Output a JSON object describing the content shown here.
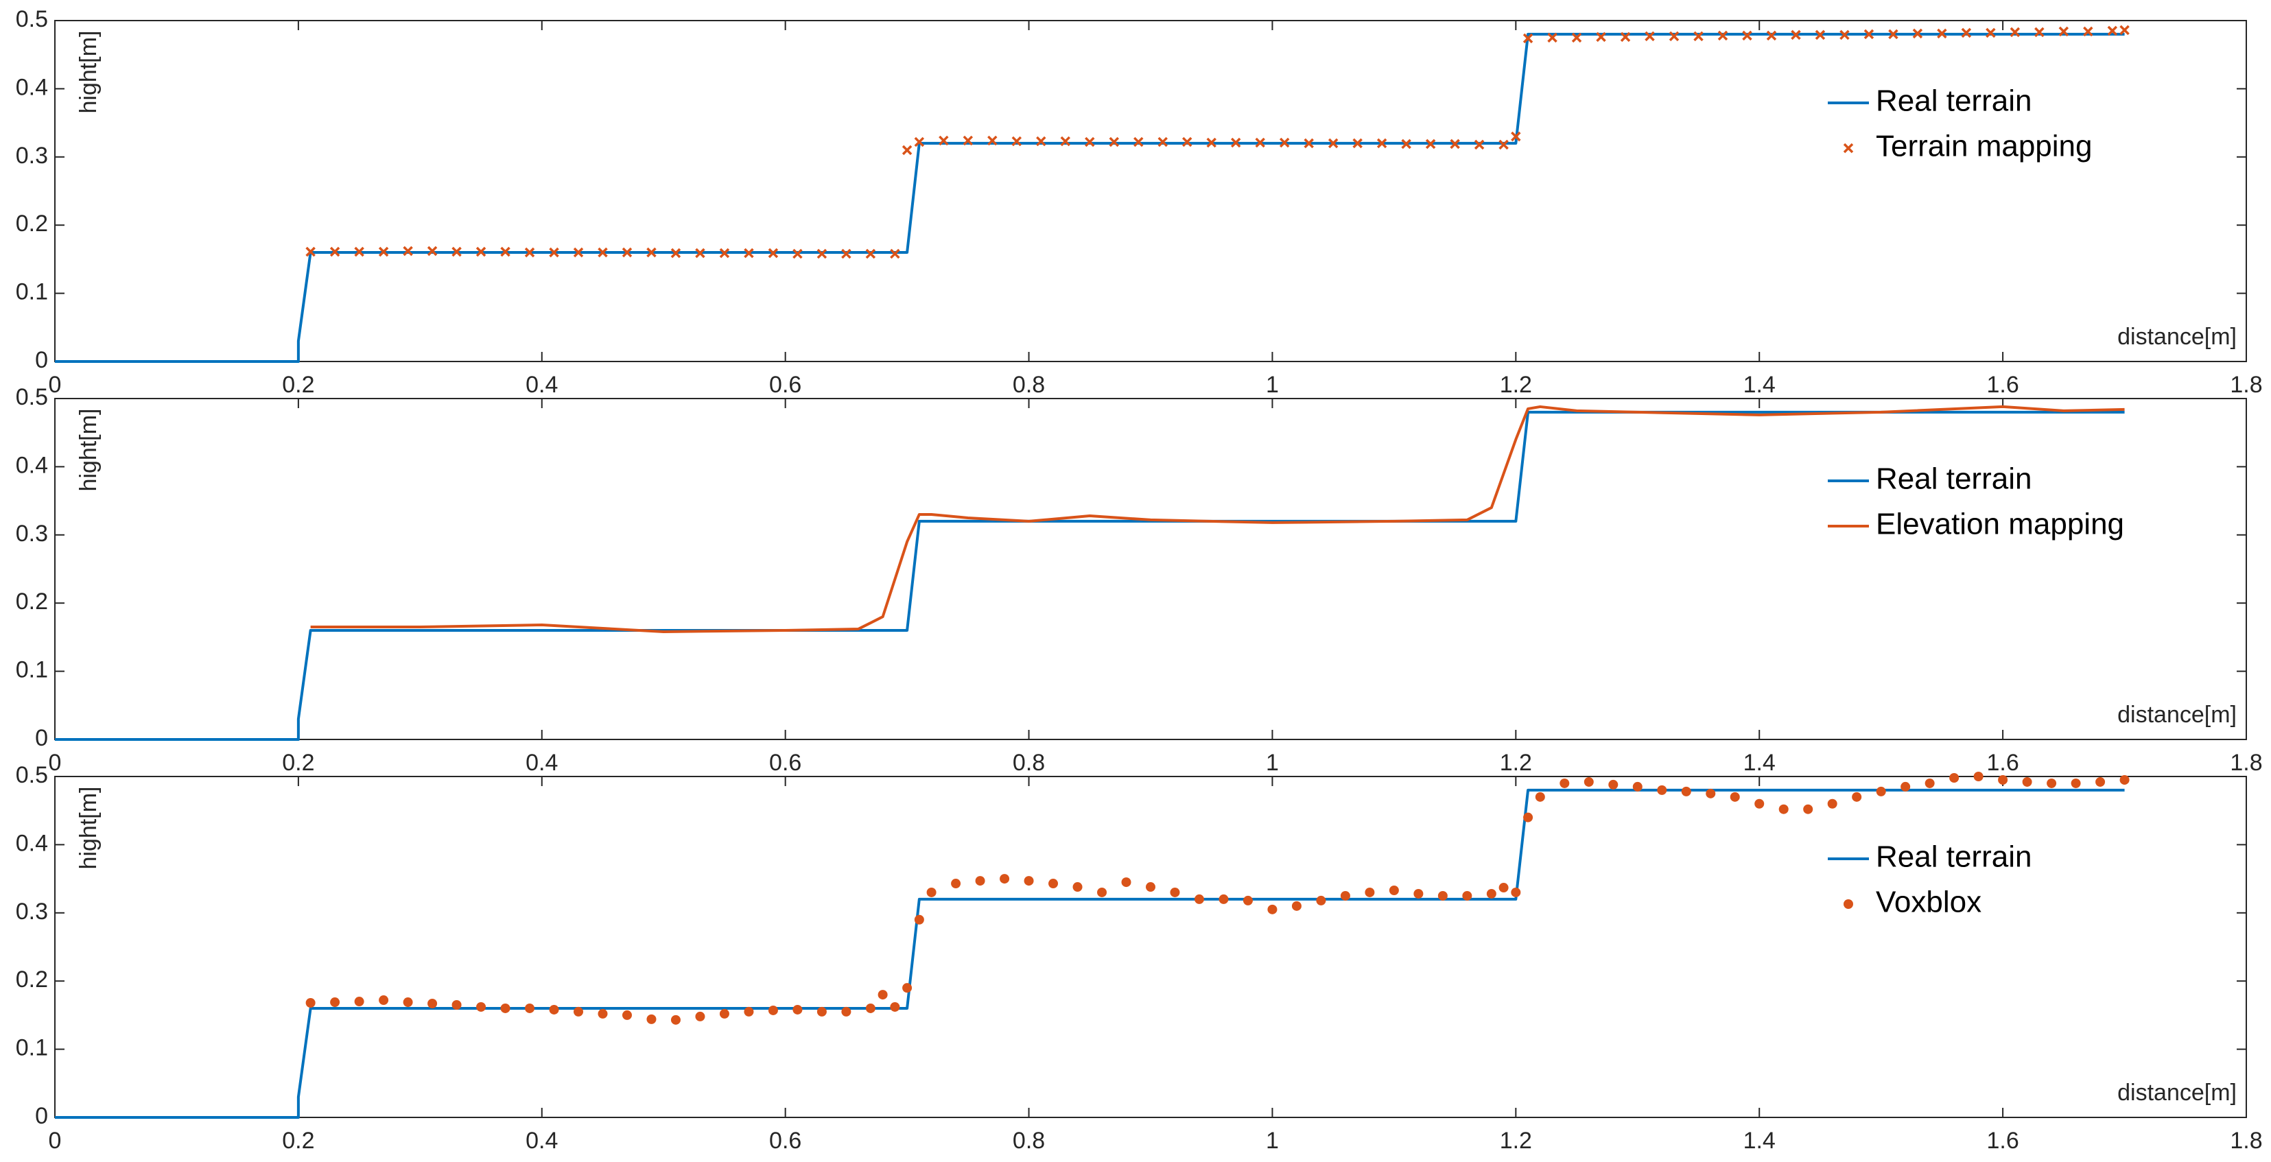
{
  "chart_data": [
    {
      "type": "line",
      "xlabel": "distance[m]",
      "ylabel": "hight[m]",
      "xlim": [
        0,
        1.8
      ],
      "xticks": [
        0,
        0.2,
        0.4,
        0.6,
        0.8,
        1,
        1.2,
        1.4,
        1.6,
        1.8
      ],
      "ylim": [
        0,
        0.5
      ],
      "yticks": [
        0,
        0.1,
        0.2,
        0.3,
        0.4,
        0.5
      ],
      "legend": "right",
      "series": [
        {
          "name": "Real terrain",
          "color": "#0072bd",
          "mode": "line",
          "x": [
            0,
            0.2,
            0.2,
            0.21,
            0.7,
            0.71,
            1.2,
            1.21,
            1.7
          ],
          "values": [
            0,
            0,
            0.03,
            0.16,
            0.16,
            0.32,
            0.32,
            0.48,
            0.48
          ]
        },
        {
          "name": "Terrain mapping",
          "color": "#d95319",
          "mode": "markers",
          "marker": "x",
          "x": [
            0.21,
            0.23,
            0.25,
            0.27,
            0.29,
            0.31,
            0.33,
            0.35,
            0.37,
            0.39,
            0.41,
            0.43,
            0.45,
            0.47,
            0.49,
            0.51,
            0.53,
            0.55,
            0.57,
            0.59,
            0.61,
            0.63,
            0.65,
            0.67,
            0.69,
            0.7,
            0.71,
            0.73,
            0.75,
            0.77,
            0.79,
            0.81,
            0.83,
            0.85,
            0.87,
            0.89,
            0.91,
            0.93,
            0.95,
            0.97,
            0.99,
            1.01,
            1.03,
            1.05,
            1.07,
            1.09,
            1.11,
            1.13,
            1.15,
            1.17,
            1.19,
            1.2,
            1.21,
            1.23,
            1.25,
            1.27,
            1.29,
            1.31,
            1.33,
            1.35,
            1.37,
            1.39,
            1.41,
            1.43,
            1.45,
            1.47,
            1.49,
            1.51,
            1.53,
            1.55,
            1.57,
            1.59,
            1.61,
            1.63,
            1.65,
            1.67,
            1.69,
            1.7
          ],
          "values": [
            0.161,
            0.161,
            0.161,
            0.161,
            0.162,
            0.162,
            0.161,
            0.161,
            0.161,
            0.16,
            0.16,
            0.16,
            0.16,
            0.16,
            0.16,
            0.159,
            0.159,
            0.159,
            0.159,
            0.159,
            0.158,
            0.158,
            0.158,
            0.158,
            0.158,
            0.31,
            0.322,
            0.324,
            0.324,
            0.324,
            0.323,
            0.323,
            0.323,
            0.322,
            0.322,
            0.322,
            0.322,
            0.322,
            0.321,
            0.321,
            0.321,
            0.321,
            0.32,
            0.32,
            0.32,
            0.32,
            0.319,
            0.319,
            0.319,
            0.318,
            0.318,
            0.33,
            0.474,
            0.475,
            0.475,
            0.476,
            0.476,
            0.477,
            0.477,
            0.477,
            0.478,
            0.478,
            0.478,
            0.479,
            0.479,
            0.479,
            0.48,
            0.48,
            0.481,
            0.481,
            0.482,
            0.482,
            0.483,
            0.483,
            0.484,
            0.484,
            0.485,
            0.486
          ]
        }
      ]
    },
    {
      "type": "line",
      "xlabel": "distance[m]",
      "ylabel": "hight[m]",
      "xlim": [
        0,
        1.8
      ],
      "xticks": [
        0,
        0.2,
        0.4,
        0.6,
        0.8,
        1,
        1.2,
        1.4,
        1.6,
        1.8
      ],
      "ylim": [
        0,
        0.5
      ],
      "yticks": [
        0,
        0.1,
        0.2,
        0.3,
        0.4,
        0.5
      ],
      "legend": "right",
      "series": [
        {
          "name": "Real terrain",
          "color": "#0072bd",
          "mode": "line",
          "x": [
            0,
            0.2,
            0.2,
            0.21,
            0.7,
            0.71,
            1.2,
            1.21,
            1.7
          ],
          "values": [
            0,
            0,
            0.03,
            0.16,
            0.16,
            0.32,
            0.32,
            0.48,
            0.48
          ]
        },
        {
          "name": "Elevation mapping",
          "color": "#d95319",
          "mode": "line",
          "x": [
            0.21,
            0.3,
            0.4,
            0.5,
            0.6,
            0.66,
            0.68,
            0.7,
            0.71,
            0.72,
            0.75,
            0.8,
            0.85,
            0.9,
            1.0,
            1.1,
            1.16,
            1.18,
            1.2,
            1.21,
            1.22,
            1.25,
            1.3,
            1.4,
            1.5,
            1.6,
            1.65,
            1.7
          ],
          "values": [
            0.165,
            0.165,
            0.168,
            0.158,
            0.16,
            0.162,
            0.18,
            0.29,
            0.33,
            0.33,
            0.325,
            0.32,
            0.328,
            0.322,
            0.318,
            0.32,
            0.322,
            0.34,
            0.44,
            0.485,
            0.488,
            0.482,
            0.48,
            0.476,
            0.48,
            0.488,
            0.482,
            0.484
          ]
        }
      ]
    },
    {
      "type": "line",
      "xlabel": "distance[m]",
      "ylabel": "hight[m]",
      "xlim": [
        0,
        1.8
      ],
      "xticks": [
        0,
        0.2,
        0.4,
        0.6,
        0.8,
        1,
        1.2,
        1.4,
        1.6,
        1.8
      ],
      "ylim": [
        0,
        0.5
      ],
      "yticks": [
        0,
        0.1,
        0.2,
        0.3,
        0.4,
        0.5
      ],
      "legend": "right",
      "series": [
        {
          "name": "Real terrain",
          "color": "#0072bd",
          "mode": "line",
          "x": [
            0,
            0.2,
            0.2,
            0.21,
            0.7,
            0.71,
            1.2,
            1.21,
            1.7
          ],
          "values": [
            0,
            0,
            0.03,
            0.16,
            0.16,
            0.32,
            0.32,
            0.48,
            0.48
          ]
        },
        {
          "name": "Voxblox",
          "color": "#d95319",
          "mode": "markers",
          "marker": "circle",
          "x": [
            0.21,
            0.23,
            0.25,
            0.27,
            0.29,
            0.31,
            0.33,
            0.35,
            0.37,
            0.39,
            0.41,
            0.43,
            0.45,
            0.47,
            0.49,
            0.51,
            0.53,
            0.55,
            0.57,
            0.59,
            0.61,
            0.63,
            0.65,
            0.67,
            0.68,
            0.69,
            0.7,
            0.71,
            0.72,
            0.74,
            0.76,
            0.78,
            0.8,
            0.82,
            0.84,
            0.86,
            0.88,
            0.9,
            0.92,
            0.94,
            0.96,
            0.98,
            1,
            1.02,
            1.04,
            1.06,
            1.08,
            1.1,
            1.12,
            1.14,
            1.16,
            1.18,
            1.19,
            1.2,
            1.21,
            1.22,
            1.24,
            1.26,
            1.28,
            1.3,
            1.32,
            1.34,
            1.36,
            1.38,
            1.4,
            1.42,
            1.44,
            1.46,
            1.48,
            1.5,
            1.52,
            1.54,
            1.56,
            1.58,
            1.6,
            1.62,
            1.64,
            1.66,
            1.68,
            1.7
          ],
          "values": [
            0.168,
            0.169,
            0.17,
            0.172,
            0.169,
            0.167,
            0.165,
            0.162,
            0.16,
            0.16,
            0.158,
            0.155,
            0.152,
            0.15,
            0.144,
            0.143,
            0.148,
            0.152,
            0.155,
            0.157,
            0.158,
            0.155,
            0.155,
            0.16,
            0.18,
            0.162,
            0.19,
            0.29,
            0.33,
            0.343,
            0.347,
            0.35,
            0.347,
            0.343,
            0.338,
            0.33,
            0.345,
            0.338,
            0.33,
            0.32,
            0.32,
            0.318,
            0.305,
            0.31,
            0.318,
            0.325,
            0.33,
            0.333,
            0.328,
            0.325,
            0.325,
            0.328,
            0.337,
            0.33,
            0.44,
            0.47,
            0.49,
            0.492,
            0.488,
            0.485,
            0.48,
            0.478,
            0.475,
            0.47,
            0.46,
            0.452,
            0.452,
            0.46,
            0.47,
            0.478,
            0.485,
            0.49,
            0.498,
            0.5,
            0.495,
            0.492,
            0.49,
            0.49,
            0.492,
            0.495
          ]
        }
      ]
    }
  ]
}
